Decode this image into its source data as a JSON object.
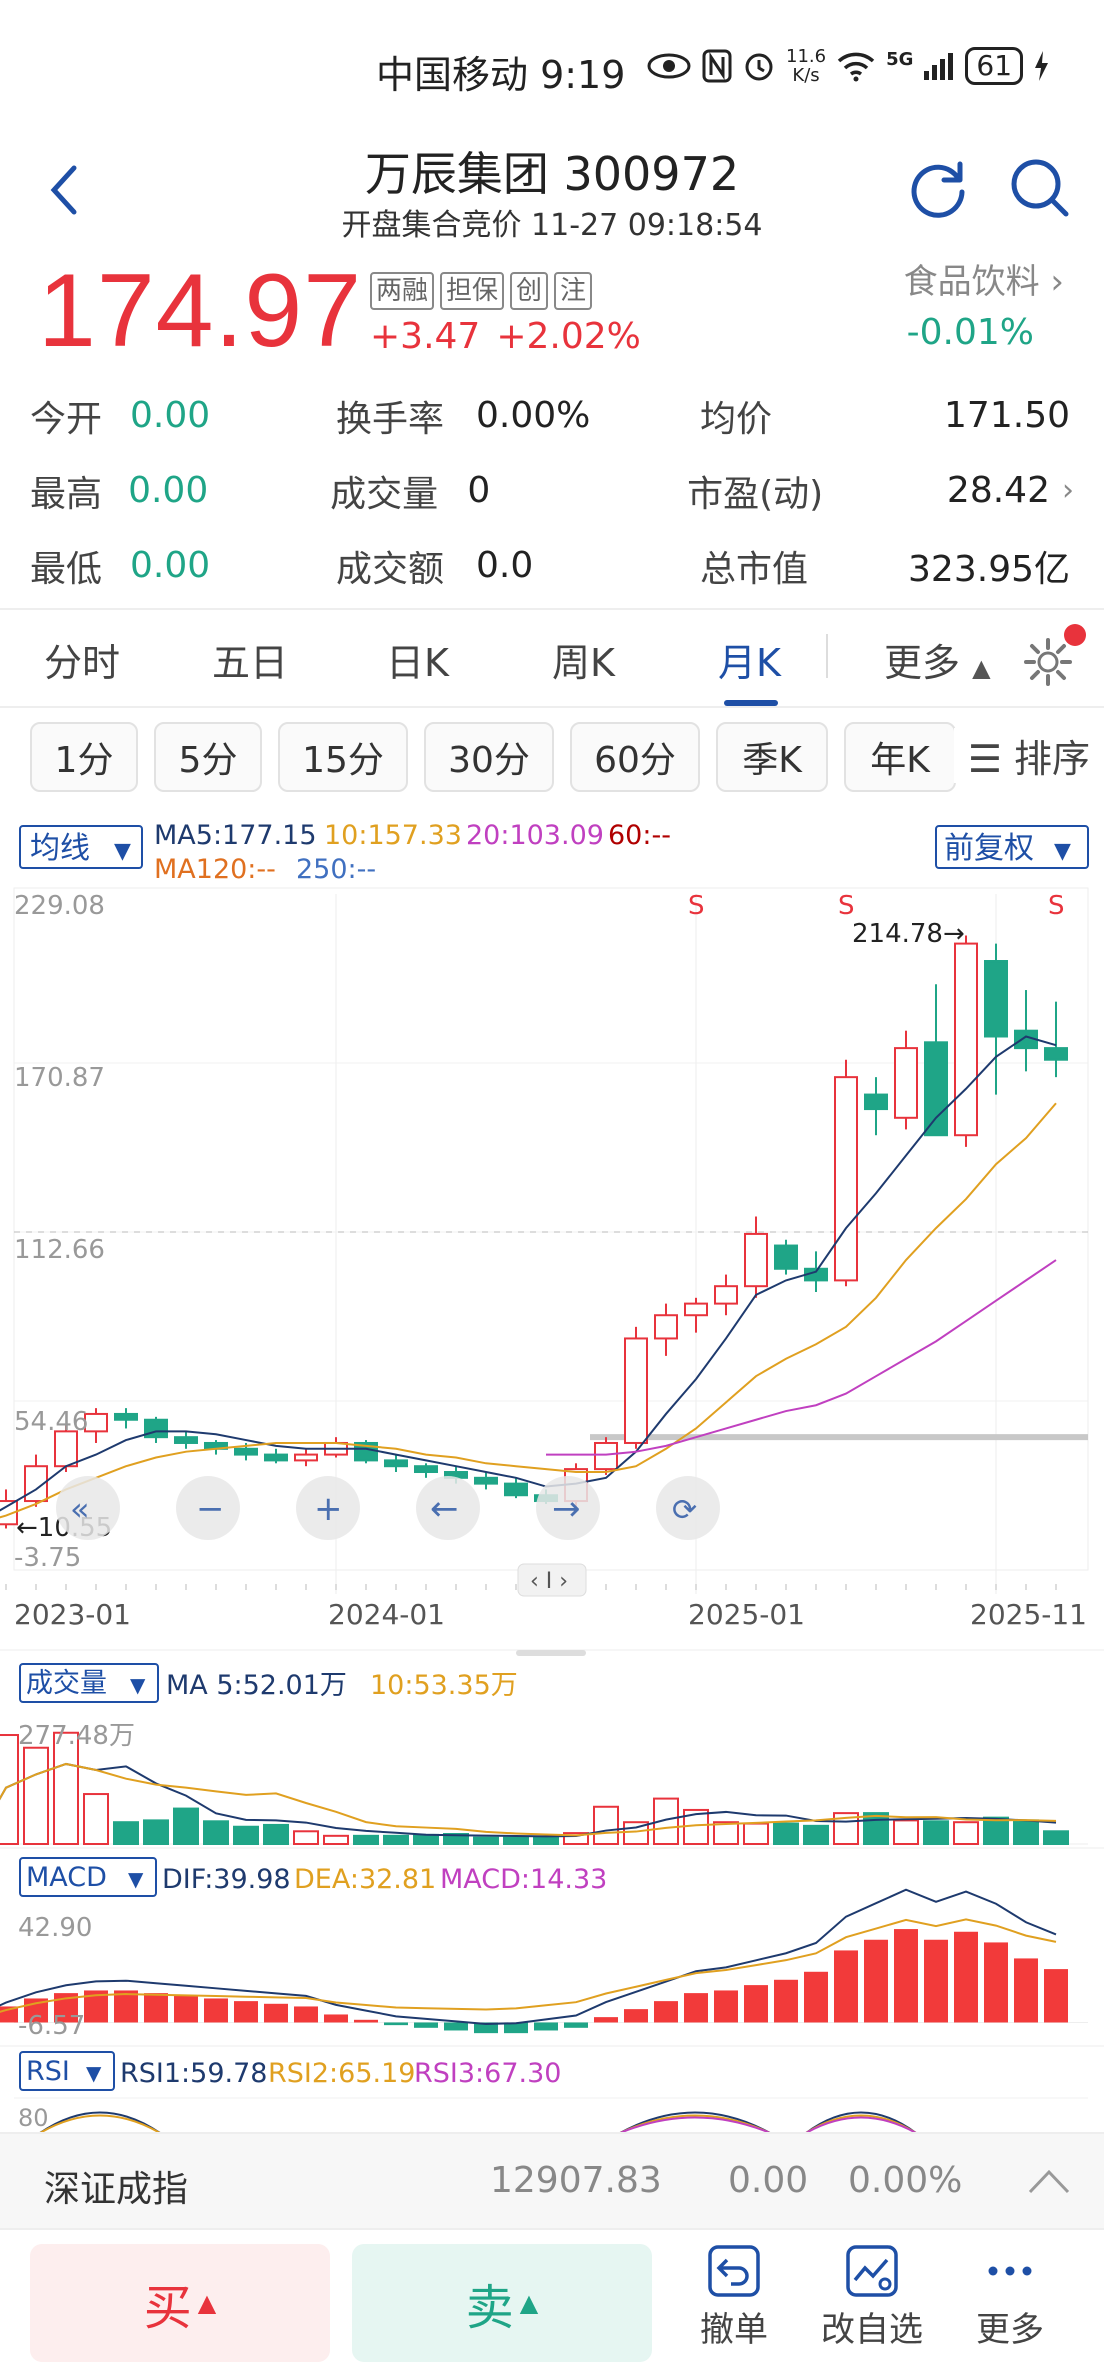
{
  "status": {
    "carrier_time": "中国移动 9:19",
    "net_speed": "11.6",
    "net_unit": "K/s",
    "network": "5G",
    "battery": "61"
  },
  "header": {
    "title": "万辰集团 300972",
    "subtitle": "开盘集合竞价 11-27 09:18:54"
  },
  "quote": {
    "price": "174.97",
    "tags": [
      "两融",
      "担保",
      "创",
      "注"
    ],
    "change": "+3.47",
    "change_pct": "+2.02%",
    "sector": "食品饮料",
    "sector_change": "-0.01%"
  },
  "stats": [
    {
      "l1": "今开",
      "v1": "0.00",
      "l2": "换手率",
      "v2": "0.00%",
      "l3": "均价",
      "v3": "171.50"
    },
    {
      "l1": "最高",
      "v1": "0.00",
      "l2": "成交量",
      "v2": "0",
      "l3": "市盈(动)",
      "v3": "28.42"
    },
    {
      "l1": "最低",
      "v1": "0.00",
      "l2": "成交额",
      "v2": "0.0",
      "l3": "总市值",
      "v3": "323.95亿"
    }
  ],
  "tabs": [
    "分时",
    "五日",
    "日K",
    "周K",
    "月K",
    "更多"
  ],
  "active_tab": "月K",
  "periods": [
    "1分",
    "5分",
    "15分",
    "30分",
    "60分",
    "季K",
    "年K"
  ],
  "sort_label": "排序",
  "chart_header": {
    "selector": "均线",
    "ma5": "MA5:177.15",
    "ma10": "10:157.33",
    "ma20": "20:103.09",
    "ma60": "60:--",
    "ma120": "MA120:--",
    "ma250": "250:--",
    "adjust": "前复权"
  },
  "axis": {
    "y_labels": [
      "229.08",
      "170.87",
      "112.66",
      "54.46",
      "-3.75"
    ],
    "x_labels": [
      "2023-01",
      "2024-01",
      "2025-01",
      "2025-11"
    ],
    "max_marker": "214.78→",
    "min_marker": "←10.55",
    "signal": "S"
  },
  "volume": {
    "selector": "成交量",
    "ma5": "MA 5:52.01万",
    "ma10": "10:53.35万",
    "max_label": "277.48万"
  },
  "macd": {
    "selector": "MACD",
    "dif": "DIF:39.98",
    "dea": "DEA:32.81",
    "macd": "MACD:14.33",
    "top_label": "42.90",
    "bottom_label": "-6.57"
  },
  "rsi": {
    "selector": "RSI",
    "rsi1": "RSI1:59.78",
    "rsi2": "RSI2:65.19",
    "rsi3": "RSI3:67.30",
    "top_label": "80"
  },
  "index_bar": {
    "name": "深证成指",
    "value": "12907.83",
    "change": "0.00",
    "pct": "0.00%"
  },
  "actions": {
    "buy": "买",
    "sell": "卖",
    "cancel": "撤单",
    "edit_watch": "改自选",
    "more": "更多"
  },
  "colors": {
    "up": "#e8333c",
    "down": "#1fa587",
    "accent": "#1e4fa6",
    "ma5": "#1e3a6e",
    "ma10": "#e0a020",
    "ma20": "#c040c0"
  },
  "chart_data": {
    "type": "candlestick",
    "title": "",
    "period": "monthly",
    "ylim": [
      -3.75,
      229.08
    ],
    "x_ticks": [
      "2023-01",
      "2024-01",
      "2025-01",
      "2025-11"
    ],
    "candles": [
      {
        "o": 18,
        "h": 20,
        "l": 9,
        "c": 12
      },
      {
        "o": 12,
        "h": 24,
        "l": 10.55,
        "c": 20
      },
      {
        "o": 20,
        "h": 36,
        "l": 18,
        "c": 32
      },
      {
        "o": 32,
        "h": 46,
        "l": 30,
        "c": 44
      },
      {
        "o": 44,
        "h": 52,
        "l": 40,
        "c": 50
      },
      {
        "o": 50,
        "h": 52,
        "l": 45,
        "c": 48
      },
      {
        "o": 48,
        "h": 49,
        "l": 40,
        "c": 42
      },
      {
        "o": 42,
        "h": 44,
        "l": 38,
        "c": 40
      },
      {
        "o": 40,
        "h": 41,
        "l": 36,
        "c": 38
      },
      {
        "o": 38,
        "h": 40,
        "l": 34,
        "c": 36
      },
      {
        "o": 36,
        "h": 38,
        "l": 33,
        "c": 34
      },
      {
        "o": 34,
        "h": 38,
        "l": 32,
        "c": 36
      },
      {
        "o": 36,
        "h": 42,
        "l": 35,
        "c": 40
      },
      {
        "o": 40,
        "h": 41,
        "l": 33,
        "c": 34
      },
      {
        "o": 34,
        "h": 36,
        "l": 30,
        "c": 32
      },
      {
        "o": 32,
        "h": 33,
        "l": 28,
        "c": 30
      },
      {
        "o": 30,
        "h": 32,
        "l": 26,
        "c": 28
      },
      {
        "o": 28,
        "h": 30,
        "l": 24,
        "c": 26
      },
      {
        "o": 26,
        "h": 28,
        "l": 21,
        "c": 22
      },
      {
        "o": 22,
        "h": 24,
        "l": 19,
        "c": 20
      },
      {
        "o": 20,
        "h": 33,
        "l": 18,
        "c": 31
      },
      {
        "o": 31,
        "h": 42,
        "l": 29,
        "c": 40
      },
      {
        "o": 40,
        "h": 80,
        "l": 38,
        "c": 76
      },
      {
        "o": 76,
        "h": 88,
        "l": 70,
        "c": 84
      },
      {
        "o": 84,
        "h": 90,
        "l": 78,
        "c": 88
      },
      {
        "o": 88,
        "h": 98,
        "l": 84,
        "c": 94
      },
      {
        "o": 94,
        "h": 118,
        "l": 90,
        "c": 112
      },
      {
        "o": 108,
        "h": 110,
        "l": 98,
        "c": 100
      },
      {
        "o": 100,
        "h": 106,
        "l": 92,
        "c": 96
      },
      {
        "o": 96,
        "h": 172,
        "l": 94,
        "c": 166
      },
      {
        "o": 160,
        "h": 166,
        "l": 146,
        "c": 155
      },
      {
        "o": 152,
        "h": 182,
        "l": 148,
        "c": 176
      },
      {
        "o": 178,
        "h": 198,
        "l": 146,
        "c": 146
      },
      {
        "o": 146,
        "h": 214.78,
        "l": 142,
        "c": 212
      },
      {
        "o": 206,
        "h": 212,
        "l": 160,
        "c": 180
      },
      {
        "o": 182,
        "h": 196,
        "l": 168,
        "c": 176
      },
      {
        "o": 176,
        "h": 192,
        "l": 166,
        "c": 172
      }
    ],
    "ma5_line": [
      12,
      18,
      24,
      32,
      36,
      41,
      44,
      44,
      43,
      41,
      39,
      38,
      38,
      38,
      36,
      34,
      32,
      30,
      28,
      25,
      26,
      28,
      37,
      50,
      62,
      76,
      91,
      96,
      99,
      114,
      126,
      139,
      152,
      162,
      173,
      180,
      177
    ],
    "ma10_line": [
      12,
      15,
      19,
      24,
      28,
      32,
      35,
      37,
      38,
      39,
      40,
      40,
      40,
      39,
      38,
      36,
      35,
      33,
      32,
      31,
      30,
      30,
      32,
      38,
      45,
      54,
      63,
      69,
      74,
      80,
      90,
      103,
      114,
      124,
      136,
      145,
      157
    ],
    "ma20_line": [
      null,
      null,
      null,
      null,
      null,
      null,
      null,
      null,
      null,
      null,
      null,
      null,
      null,
      null,
      null,
      null,
      null,
      null,
      null,
      36,
      36,
      36,
      37,
      39,
      42,
      45,
      48,
      51,
      53,
      57,
      63,
      69,
      75,
      82,
      89,
      96,
      103
    ],
    "signals_at": [
      24,
      29,
      36
    ],
    "volume_bars": [
      8,
      240,
      212,
      245,
      110,
      48,
      52,
      78,
      50,
      38,
      42,
      28,
      18,
      18,
      18,
      20,
      22,
      14,
      14,
      14,
      24,
      82,
      48,
      100,
      75,
      48,
      45,
      45,
      40,
      68,
      68,
      52,
      50,
      48,
      58,
      52,
      28
    ],
    "macd_bars": [
      2,
      6,
      9,
      11,
      12,
      12,
      11,
      10,
      9,
      8,
      7,
      6,
      3,
      1,
      -1,
      -2,
      -3,
      -4,
      -4,
      -3,
      -2,
      2,
      5,
      8,
      11,
      12,
      14,
      16,
      19,
      27,
      31,
      35,
      31,
      34,
      30,
      24,
      20
    ]
  }
}
